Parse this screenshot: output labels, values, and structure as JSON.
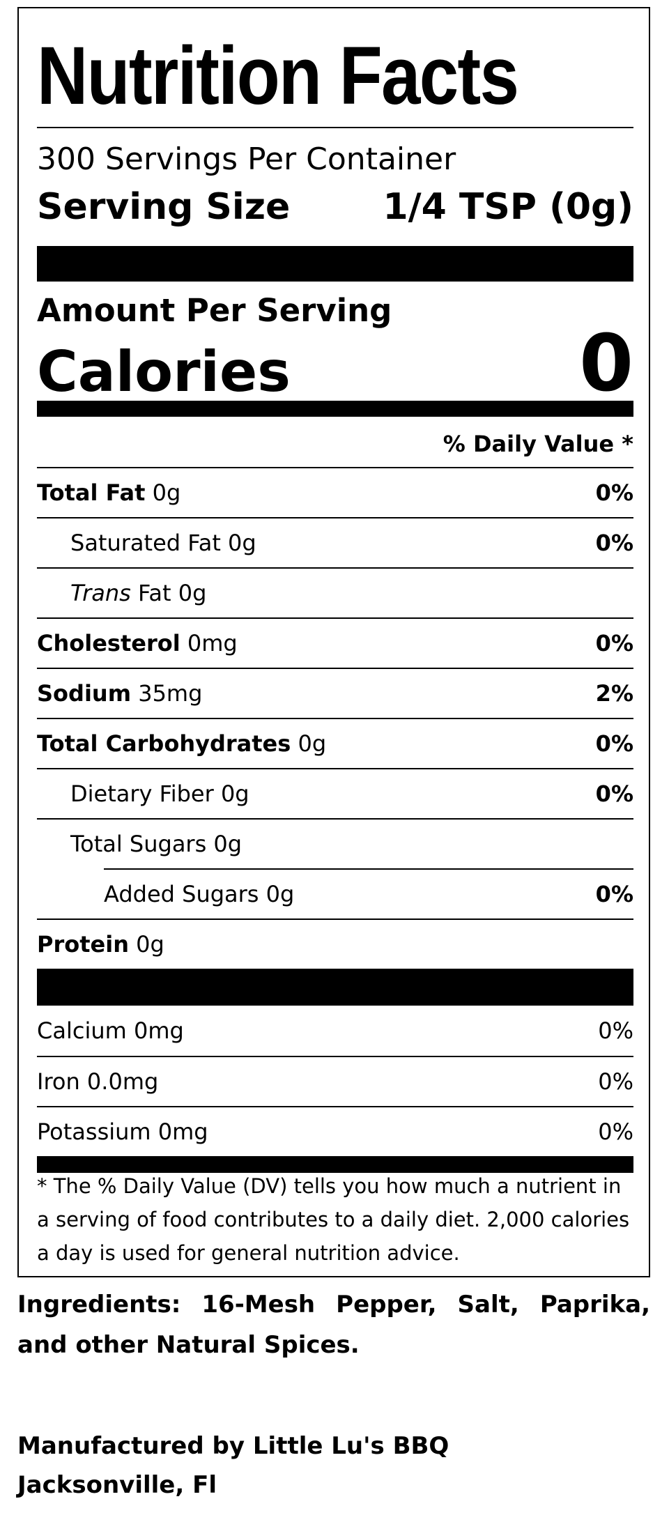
{
  "title": "Nutrition Facts",
  "servings_per_container": "300 Servings Per Container",
  "serving_size": {
    "label": "Serving Size",
    "value": "1/4 TSP (0g)"
  },
  "amount_per_serving": "Amount Per Serving",
  "calories": {
    "label": "Calories",
    "value": "0"
  },
  "daily_value_header": "% Daily Value *",
  "nutrients": [
    {
      "name": "Total Fat",
      "amount": "0g",
      "dv": "0%"
    },
    {
      "name": "Saturated Fat",
      "amount": "0g",
      "dv": "0%"
    },
    {
      "name": "Trans",
      "amount": "Fat 0g"
    },
    {
      "name": "Cholesterol",
      "amount": "0mg",
      "dv": "0%"
    },
    {
      "name": "Sodium",
      "amount": "35mg",
      "dv": "2%"
    },
    {
      "name": "Total Carbohydrates",
      "amount": "0g",
      "dv": "0%"
    },
    {
      "name": "Dietary Fiber",
      "amount": "0g",
      "dv": "0%"
    },
    {
      "name": "Total Sugars",
      "amount": "0g"
    },
    {
      "name": "Added Sugars",
      "amount": "0g",
      "dv": "0%"
    },
    {
      "name": "Protein",
      "amount": "0g"
    }
  ],
  "minerals": [
    {
      "name": "Calcium",
      "amount": "0mg",
      "dv": "0%"
    },
    {
      "name": "Iron",
      "amount": "0.0mg",
      "dv": "0%"
    },
    {
      "name": "Potassium",
      "amount": "0mg",
      "dv": "0%"
    }
  ],
  "footnote": "* The % Daily Value (DV) tells you how much a nutrient in a serving of food contributes to a daily diet. 2,000 calories a day is used for general nutrition advice.",
  "ingredients": "Ingredients: 16-Mesh Pepper, Salt, Paprika, and other Natural Spices.",
  "manufacturer": [
    "Manufactured by Little Lu's BBQ",
    "Jacksonville, Fl"
  ]
}
